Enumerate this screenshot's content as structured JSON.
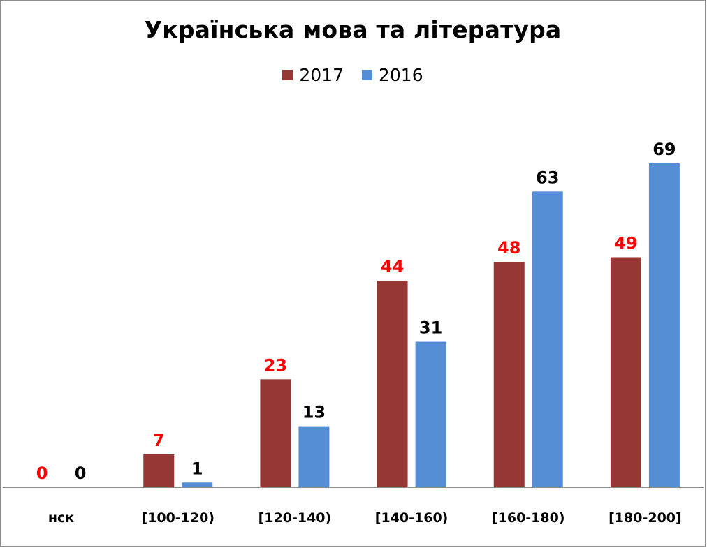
{
  "chart_data": {
    "type": "bar",
    "title": "Українська мова та література",
    "categories": [
      "нск",
      "[100-120)",
      "[120-140)",
      "[140-160)",
      "[160-180)",
      "[180-200]"
    ],
    "series": [
      {
        "name": "2017",
        "values": [
          0,
          7,
          23,
          44,
          48,
          49
        ],
        "color": "#953735",
        "label_color": "#ff0000"
      },
      {
        "name": "2016",
        "values": [
          0,
          1,
          13,
          31,
          63,
          69
        ],
        "color": "#558ed5",
        "label_color": "#000000"
      }
    ],
    "xlabel": "",
    "ylabel": "",
    "ylim": [
      0,
      80
    ],
    "grid": false,
    "legend_position": "top"
  }
}
